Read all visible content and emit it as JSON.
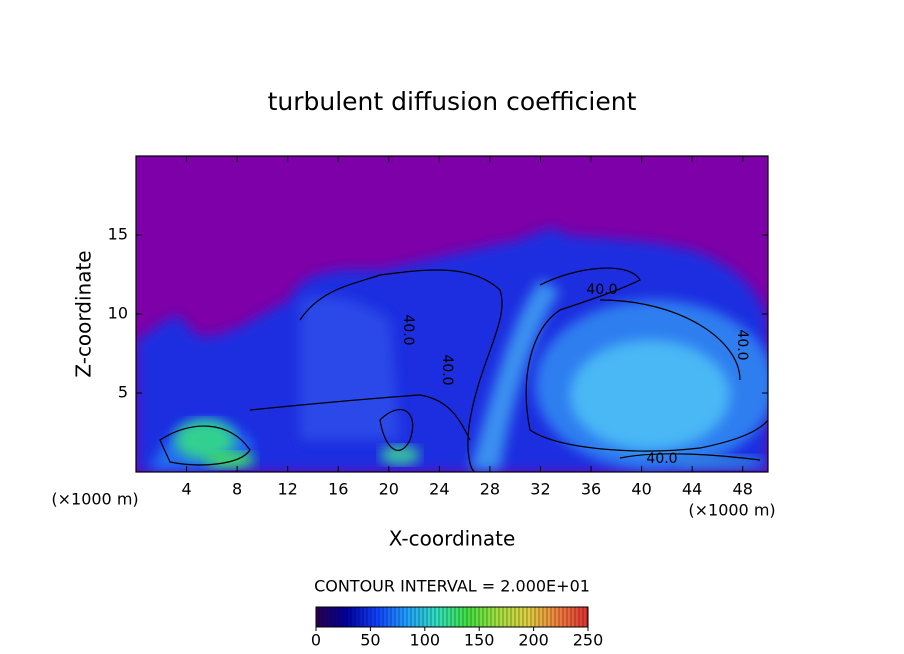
{
  "chart_data": {
    "type": "contour",
    "title": "turbulent diffusion coefficient",
    "x_label": "X-coordinate",
    "y_label": "Z-coordinate",
    "x_unit": "(×1000 m)",
    "y_unit": "(×1000 m)",
    "xlim": [
      0,
      50
    ],
    "xticks": [
      4,
      8,
      12,
      16,
      20,
      24,
      28,
      32,
      36,
      40,
      44,
      48
    ],
    "ylim": [
      0,
      20
    ],
    "yticks": [
      5,
      10,
      15
    ],
    "contour_interval": "CONTOUR INTERVAL = 2.000E+01",
    "contour_labels": [
      "40.0",
      "40.0",
      "40.0",
      "40.0",
      "40.0"
    ],
    "colorbar": {
      "lim": [
        0,
        250
      ],
      "ticks": [
        0,
        50,
        100,
        150,
        200,
        250
      ],
      "colors": [
        "#2a0050",
        "#0000a0",
        "#1040ff",
        "#20a0ff",
        "#30e0c0",
        "#40e040",
        "#a0e040",
        "#e0d040",
        "#f08040",
        "#e03030"
      ]
    }
  }
}
